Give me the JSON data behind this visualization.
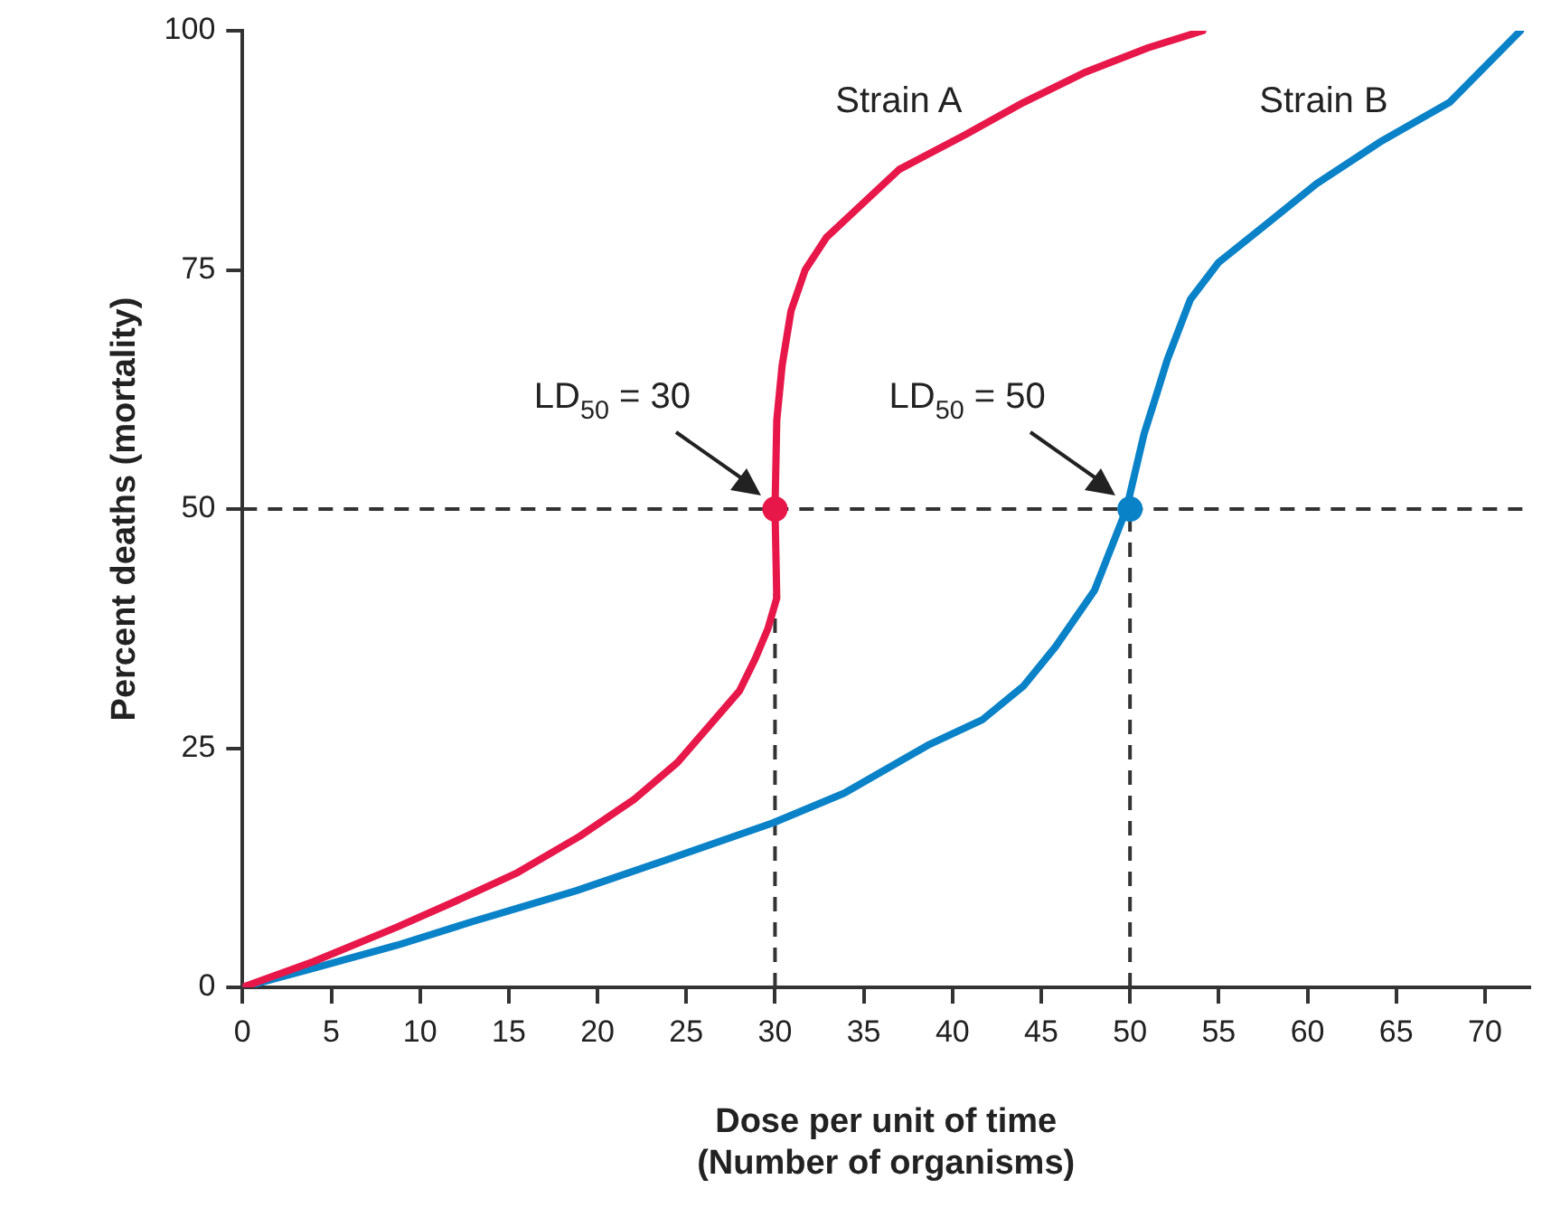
{
  "chart_data": {
    "type": "line",
    "xlabel": "Dose per unit of time\n(Number of organisms)",
    "ylabel": "Percent deaths (mortality)",
    "xlim": [
      0,
      72.5
    ],
    "xticks": [
      0,
      5,
      10,
      15,
      20,
      25,
      30,
      35,
      40,
      45,
      50,
      55,
      60,
      65,
      70
    ],
    "ylim": [
      0,
      100
    ],
    "yticks": [
      0,
      25,
      50,
      75,
      100
    ],
    "grid": false,
    "legend": false,
    "marker": "none",
    "line_style": "solid",
    "series": [
      {
        "name": "Strain A",
        "color": "#e8174a",
        "x": [
          0,
          4,
          8.7,
          12,
          15.5,
          19,
          22.1,
          24.5,
          26.6,
          28,
          28.9,
          29.6,
          30.1,
          30,
          30.1,
          30.4,
          30.9,
          31.7,
          32.9,
          34,
          37,
          40.7,
          44,
          47.4,
          51,
          54.1
        ],
        "values": [
          0,
          2.7,
          6.3,
          9,
          12,
          15.8,
          19.7,
          23.5,
          28,
          31,
          34.4,
          37.5,
          40.7,
          50,
          59.3,
          65,
          70.7,
          75,
          78.4,
          80.3,
          85.5,
          89.1,
          92.5,
          95.6,
          98.2,
          100
        ]
      },
      {
        "name": "Strain B",
        "color": "#0a82c8",
        "x": [
          0,
          4,
          8.7,
          13,
          18.8,
          24,
          29.9,
          33.9,
          38.7,
          41.7,
          44,
          45.8,
          48,
          49.8,
          50.8,
          51.5,
          52.1,
          53.4,
          55,
          57.5,
          60.5,
          64.2,
          68,
          72
        ],
        "values": [
          0,
          2,
          4.4,
          6.9,
          10.1,
          13.4,
          17.2,
          20.3,
          25.4,
          28,
          31.5,
          35.6,
          41.5,
          50,
          57.9,
          62,
          65.6,
          71.9,
          75.8,
          79.5,
          84,
          88.5,
          92.5,
          100
        ]
      },
      {
        "type": "scatter",
        "marker": "circle",
        "x": [
          30,
          50
        ],
        "values": [
          50,
          50
        ],
        "colors": [
          "#e8174a",
          "#0a82c8"
        ]
      }
    ],
    "ref_lines": [
      {
        "axis": "y",
        "value": 50,
        "color": "#333333",
        "line_style": "dashed"
      },
      {
        "axis": "x",
        "value": 30,
        "color": "#333333",
        "line_style": "dashed"
      },
      {
        "axis": "x",
        "value": 50,
        "color": "#333333",
        "line_style": "dashed"
      }
    ],
    "annotations": [
      "LD$_{50}$ = 30",
      "LD$_{50}$ = 50"
    ]
  }
}
